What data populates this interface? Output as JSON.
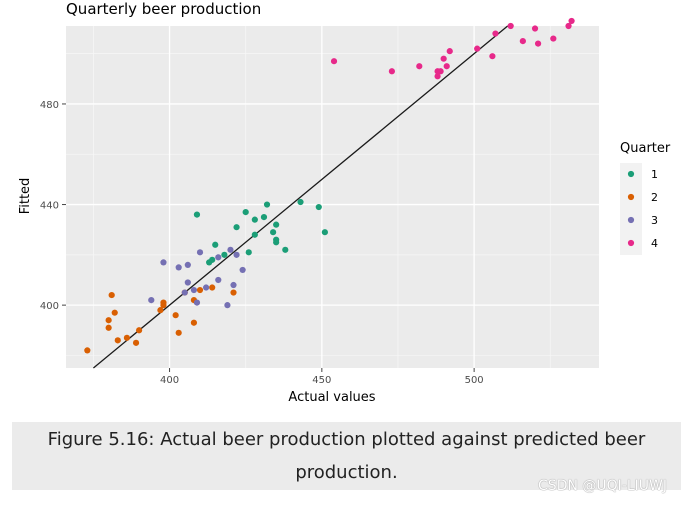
{
  "chart_data": {
    "type": "scatter",
    "title": "Quarterly beer production",
    "xlabel": "Actual values",
    "ylabel": "Fitted",
    "xlim": [
      366,
      541
    ],
    "ylim": [
      375,
      511
    ],
    "xticks": [
      400,
      450,
      500
    ],
    "yticks": [
      400,
      440,
      480
    ],
    "grid": true,
    "legend": {
      "title": "Quarter",
      "position": "right"
    },
    "reference_line": {
      "slope": 1,
      "intercept": 0
    },
    "series": [
      {
        "name": "1",
        "color": "#1b9e77",
        "points": [
          [
            409,
            436
          ],
          [
            413,
            417
          ],
          [
            414,
            418
          ],
          [
            415,
            424
          ],
          [
            418,
            420
          ],
          [
            422,
            431
          ],
          [
            425,
            437
          ],
          [
            426,
            421
          ],
          [
            428,
            434
          ],
          [
            428,
            428
          ],
          [
            431,
            435
          ],
          [
            432,
            440
          ],
          [
            434,
            429
          ],
          [
            435,
            432
          ],
          [
            435,
            426
          ],
          [
            435,
            425
          ],
          [
            438,
            422
          ],
          [
            443,
            441
          ],
          [
            449,
            439
          ],
          [
            451,
            429
          ]
        ]
      },
      {
        "name": "2",
        "color": "#d95f02",
        "points": [
          [
            373,
            382
          ],
          [
            380,
            394
          ],
          [
            380,
            391
          ],
          [
            381,
            404
          ],
          [
            382,
            397
          ],
          [
            383,
            386
          ],
          [
            386,
            387
          ],
          [
            389,
            385
          ],
          [
            390,
            390
          ],
          [
            397,
            398
          ],
          [
            398,
            401
          ],
          [
            398,
            400
          ],
          [
            402,
            396
          ],
          [
            403,
            389
          ],
          [
            405,
            405
          ],
          [
            408,
            402
          ],
          [
            408,
            393
          ],
          [
            410,
            406
          ],
          [
            414,
            407
          ],
          [
            421,
            405
          ]
        ]
      },
      {
        "name": "3",
        "color": "#7570b3",
        "points": [
          [
            394,
            402
          ],
          [
            398,
            417
          ],
          [
            403,
            415
          ],
          [
            405,
            405
          ],
          [
            406,
            416
          ],
          [
            406,
            409
          ],
          [
            408,
            406
          ],
          [
            409,
            401
          ],
          [
            410,
            421
          ],
          [
            412,
            407
          ],
          [
            416,
            410
          ],
          [
            416,
            419
          ],
          [
            419,
            400
          ],
          [
            420,
            422
          ],
          [
            421,
            408
          ],
          [
            422,
            420
          ],
          [
            424,
            414
          ]
        ]
      },
      {
        "name": "4",
        "color": "#e7298a",
        "points": [
          [
            454,
            497
          ],
          [
            473,
            493
          ],
          [
            482,
            495
          ],
          [
            488,
            493
          ],
          [
            488,
            491
          ],
          [
            489,
            493
          ],
          [
            490,
            498
          ],
          [
            491,
            495
          ],
          [
            492,
            501
          ],
          [
            501,
            502
          ],
          [
            506,
            499
          ],
          [
            507,
            508
          ],
          [
            512,
            511
          ],
          [
            516,
            505
          ],
          [
            520,
            510
          ],
          [
            521,
            504
          ],
          [
            526,
            506
          ],
          [
            531,
            511
          ],
          [
            532,
            513
          ]
        ]
      }
    ]
  },
  "caption": {
    "line1": "Figure 5.16: Actual beer production plotted against predicted beer",
    "line2": "production."
  },
  "watermark": "CSDN @UQI-LIUWJ"
}
